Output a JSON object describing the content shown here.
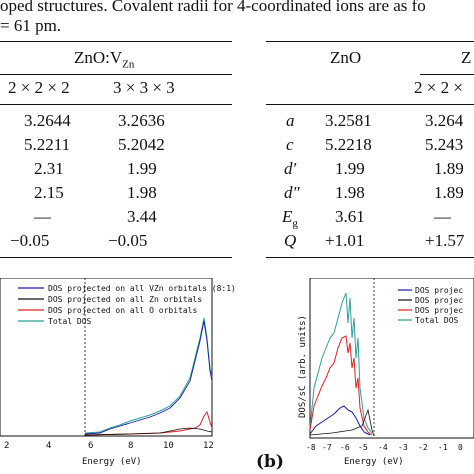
{
  "caption": {
    "line1": "oped structures. Covalent radii for 4-coordinated ions are as fo",
    "line2": "= 61 pm."
  },
  "table_left": {
    "group_header": "ZnO:V",
    "group_sub": "Zn",
    "columns": [
      "2 × 2 × 2",
      "3 × 3 × 3"
    ],
    "rows": [
      [
        "3.2644",
        "3.2636"
      ],
      [
        "5.2211",
        "5.2042"
      ],
      [
        "2.31",
        "1.99"
      ],
      [
        "2.15",
        "1.98"
      ],
      [
        "—",
        "3.44"
      ],
      [
        "−0.05",
        "−0.05"
      ]
    ]
  },
  "table_right": {
    "col_zno": "ZnO",
    "col_partial": "Z",
    "sub_partial": "2 × 2 ×",
    "rows": [
      {
        "label": "a",
        "zno": "3.2581",
        "val": "3.264"
      },
      {
        "label": "c",
        "zno": "5.2218",
        "val": "5.243"
      },
      {
        "label": "d′",
        "zno": "1.99",
        "val": "1.89"
      },
      {
        "label": "d″",
        "zno": "1.98",
        "val": "1.89"
      },
      {
        "label": "E",
        "label_sub": "g",
        "zno": "3.61",
        "val": "—"
      },
      {
        "label": "Q",
        "zno": "+1.01",
        "val": "+1.57"
      }
    ]
  },
  "panel_b_label": "(b)",
  "chart_data": [
    {
      "type": "line",
      "xlabel": "Energy (eV)",
      "x_ticks": [
        "2",
        "4",
        "6",
        "8",
        "10",
        "12"
      ],
      "xlim": [
        2,
        12
      ],
      "legend": [
        {
          "name": "DOS projected on all VZn orbitals (8:1)",
          "color": "#1a1aa6"
        },
        {
          "name": "DOS projected on all Zn  orbitals",
          "color": "#111111"
        },
        {
          "name": "DOS projected on all O   orbitals",
          "color": "#e02020"
        },
        {
          "name": "Total DOS",
          "color": "#2aa198"
        }
      ],
      "fermi_x": 3.9
    },
    {
      "type": "line",
      "xlabel": "Energy (eV)",
      "ylabel": "DOS/sC (arb. units)",
      "x_ticks": [
        "-8",
        "-7",
        "-6",
        "-5",
        "-4",
        "-3",
        "-2",
        "-1",
        "0"
      ],
      "xlim": [
        -8,
        0
      ],
      "legend": [
        {
          "name": "DOS projec",
          "color": "#1a1aa6"
        },
        {
          "name": "DOS projec",
          "color": "#111111"
        },
        {
          "name": "DOS projec",
          "color": "#e02020"
        },
        {
          "name": "Total DOS",
          "color": "#2aa198"
        }
      ],
      "fermi_x": -4.9
    }
  ]
}
